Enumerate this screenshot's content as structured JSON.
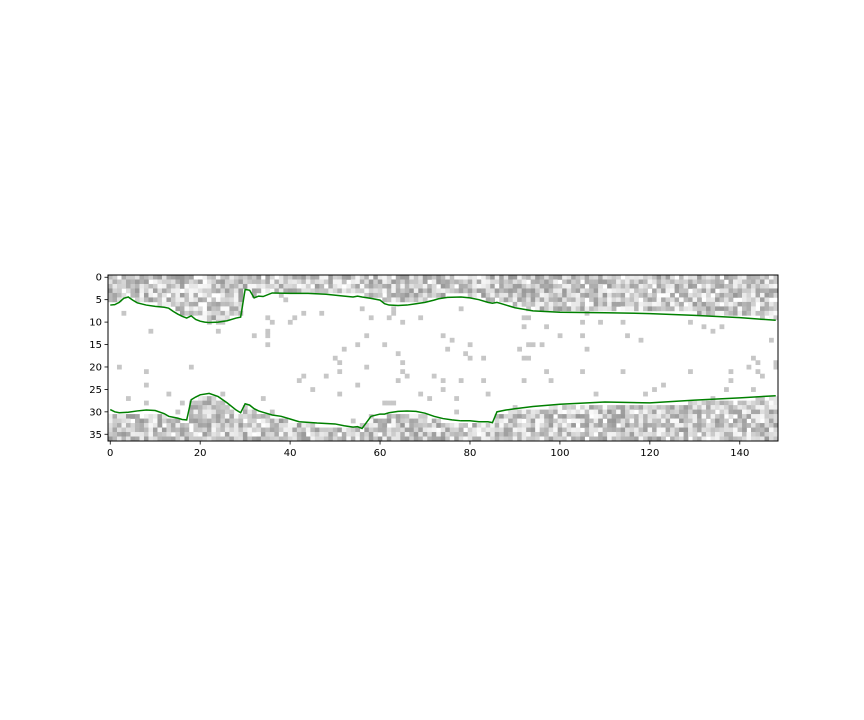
{
  "chart_data": {
    "type": "heatmap",
    "title": "",
    "xlabel": "",
    "ylabel": "",
    "image": {
      "columns": 149,
      "rows": 37,
      "colormap": "gray_r",
      "description_of_values": "noisy grayscale texture, denser near top and bottom rows, nearly blank in the middle band"
    },
    "xlim": [
      -0.5,
      148.5
    ],
    "ylim": [
      36.5,
      -0.5
    ],
    "x_ticks": [
      0,
      20,
      40,
      60,
      80,
      100,
      120,
      140
    ],
    "y_ticks": [
      0,
      5,
      10,
      15,
      20,
      25,
      30,
      35
    ],
    "series": [
      {
        "color": "#008000",
        "x": [
          0,
          1,
          2,
          3,
          4,
          5,
          6,
          8,
          10,
          12,
          13,
          14,
          15,
          16,
          17,
          18,
          19,
          20,
          21,
          22,
          24,
          26,
          28,
          29,
          30,
          31,
          32,
          33,
          34,
          36,
          40,
          44,
          48,
          52,
          54,
          55,
          56,
          58,
          60,
          61,
          62,
          64,
          66,
          68,
          70,
          72,
          73,
          75,
          78,
          80,
          82,
          84,
          85,
          86,
          87,
          88,
          90,
          94,
          100,
          110,
          120,
          130,
          140,
          148
        ],
        "y": [
          6.2,
          6.1,
          5.6,
          4.7,
          4.4,
          5.1,
          5.7,
          6.2,
          6.5,
          6.7,
          6.9,
          7.6,
          8.2,
          8.7,
          9.1,
          8.6,
          9.4,
          9.8,
          10.0,
          10.1,
          10.0,
          9.7,
          9.1,
          8.9,
          2.7,
          2.9,
          4.6,
          4.2,
          4.3,
          3.5,
          3.6,
          3.6,
          3.8,
          4.2,
          4.4,
          4.2,
          4.4,
          4.7,
          5.1,
          5.9,
          6.2,
          6.3,
          6.2,
          5.9,
          5.6,
          5.1,
          4.8,
          4.5,
          4.4,
          4.6,
          5.0,
          5.6,
          5.8,
          5.6,
          5.9,
          6.2,
          6.8,
          7.5,
          7.8,
          7.9,
          8.1,
          8.5,
          9.0,
          9.6
        ]
      },
      {
        "color": "#008000",
        "x": [
          0,
          1,
          2,
          4,
          6,
          8,
          10,
          12,
          13,
          14,
          15,
          16,
          17,
          18,
          19,
          20,
          22,
          24,
          26,
          28,
          29,
          30,
          31,
          32,
          33,
          34,
          36,
          38,
          40,
          42,
          46,
          50,
          52,
          54,
          55,
          56,
          58,
          60,
          61,
          62,
          64,
          66,
          68,
          70,
          72,
          74,
          76,
          78,
          80,
          82,
          84,
          85,
          86,
          88,
          90,
          94,
          100,
          110,
          120,
          130,
          140,
          148
        ],
        "y": [
          29.5,
          30.0,
          30.2,
          30.1,
          29.8,
          29.6,
          29.7,
          30.4,
          31.0,
          31.2,
          31.4,
          31.7,
          31.8,
          27.3,
          26.7,
          26.2,
          25.9,
          26.6,
          28.0,
          29.6,
          30.2,
          28.2,
          28.5,
          29.3,
          29.8,
          30.1,
          30.7,
          31.0,
          31.6,
          32.2,
          32.5,
          32.7,
          33.1,
          33.4,
          33.3,
          33.7,
          31.0,
          30.5,
          30.5,
          30.2,
          29.9,
          29.8,
          29.9,
          30.3,
          31.0,
          31.5,
          31.8,
          32.0,
          32.0,
          32.2,
          32.2,
          32.4,
          30.0,
          29.6,
          29.3,
          28.8,
          28.3,
          27.8,
          28.0,
          27.4,
          26.9,
          26.4
        ]
      }
    ]
  }
}
